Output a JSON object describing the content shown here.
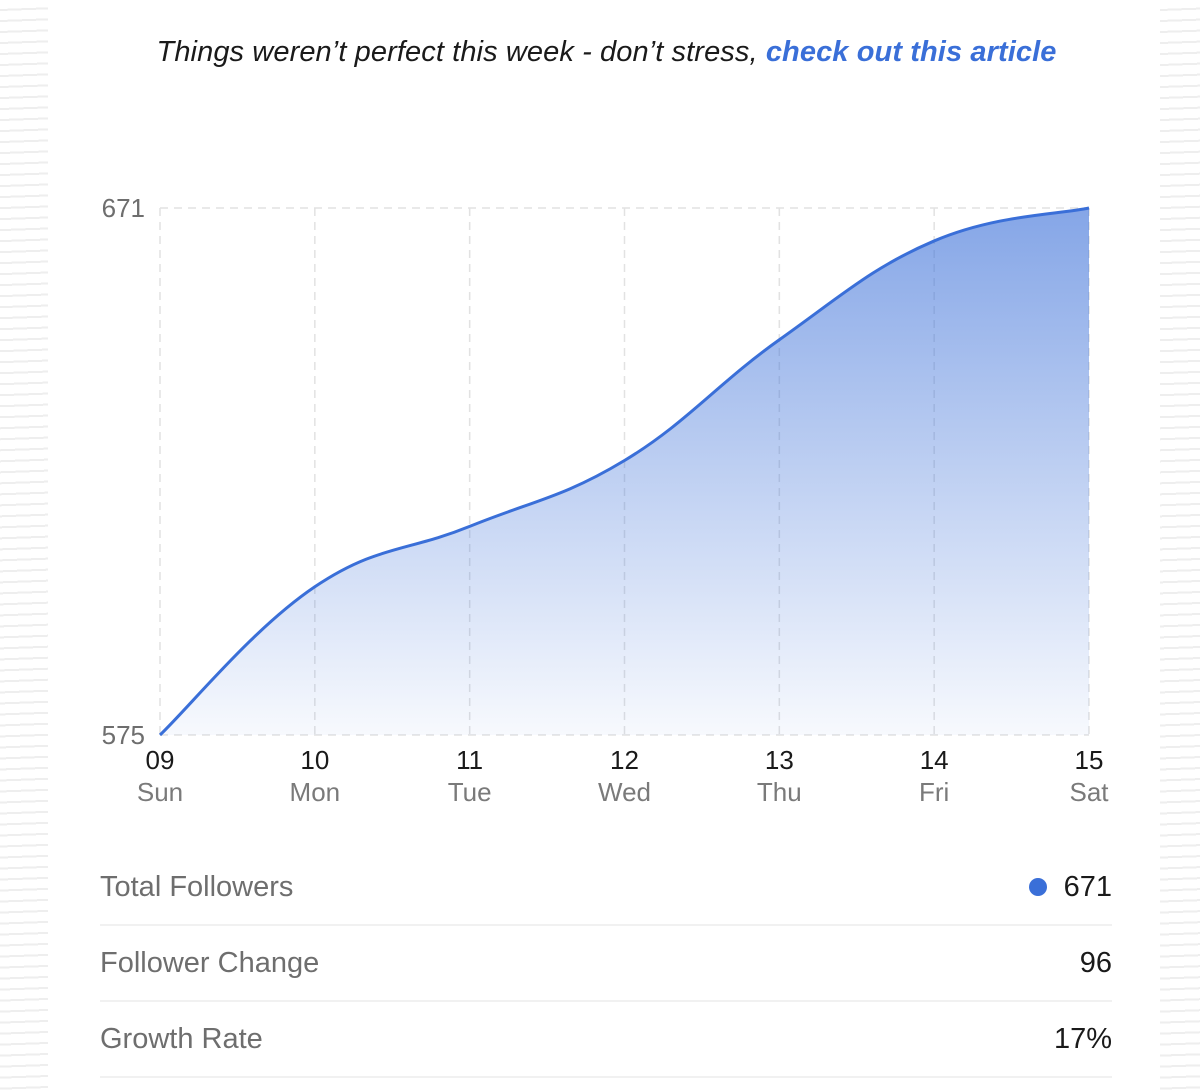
{
  "headline": {
    "text": "Things weren’t perfect this week - don’t stress, ",
    "link_text": "check out this article"
  },
  "colors": {
    "accent": "#3a6fd8",
    "grid": "#e2e2e2",
    "muted_text": "#6e6e6e"
  },
  "chart_data": {
    "type": "area",
    "x": [
      {
        "day": "09",
        "weekday": "Sun"
      },
      {
        "day": "10",
        "weekday": "Mon"
      },
      {
        "day": "11",
        "weekday": "Tue"
      },
      {
        "day": "12",
        "weekday": "Wed"
      },
      {
        "day": "13",
        "weekday": "Thu"
      },
      {
        "day": "14",
        "weekday": "Fri"
      },
      {
        "day": "15",
        "weekday": "Sat"
      }
    ],
    "series": [
      {
        "values": [
          575,
          602,
          613,
          625,
          647,
          665,
          671
        ]
      }
    ],
    "ylim": [
      575,
      671
    ],
    "y_ticks": [
      "671",
      "575"
    ],
    "grid": true
  },
  "stats": [
    {
      "label": "Total Followers",
      "value": "671",
      "marker": "dot"
    },
    {
      "label": "Follower Change",
      "value": "96"
    },
    {
      "label": "Growth Rate",
      "value": "17%"
    }
  ]
}
